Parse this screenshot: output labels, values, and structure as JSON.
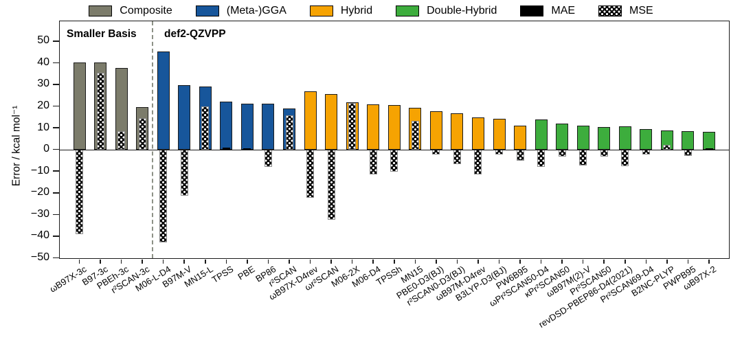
{
  "legend": {
    "items": [
      {
        "label": "Composite",
        "kind": "category",
        "color": "#7c7c6b"
      },
      {
        "label": "(Meta-)GGA",
        "kind": "category",
        "color": "#17569b"
      },
      {
        "label": "Hybrid",
        "kind": "category",
        "color": "#f6a302"
      },
      {
        "label": "Double-Hybrid",
        "kind": "category",
        "color": "#3dad3d"
      },
      {
        "label": "MAE",
        "kind": "metric",
        "color": "#000000"
      },
      {
        "label": "MSE",
        "kind": "metric",
        "color": "hatch"
      }
    ]
  },
  "chart_data": {
    "type": "bar",
    "title": "",
    "xlabel": "",
    "ylabel": "Error / kcal mol⁻¹",
    "ylim": [
      -50,
      59
    ],
    "yticks": [
      50,
      40,
      30,
      20,
      10,
      0,
      -10,
      -20,
      -30,
      -40,
      -50
    ],
    "grid": false,
    "legend_position": "top",
    "annotations": {
      "left_region": "Smaller Basis",
      "right_region": "def2-QZVPP",
      "separator_after_bar_index": 3
    },
    "group_colors": {
      "Composite": "#7c7c6b",
      "(Meta-)GGA": "#17569b",
      "Hybrid": "#f6a302",
      "Double-Hybrid": "#3dad3d"
    },
    "series_names": [
      "MAE",
      "MSE"
    ],
    "bars": [
      {
        "label": "ωB97X-3c",
        "group": "Composite",
        "mae": 40.0,
        "mse": -39.0
      },
      {
        "label": "B97-3c",
        "group": "Composite",
        "mae": 40.0,
        "mse": 35.5
      },
      {
        "label": "PBEh-3c",
        "group": "Composite",
        "mae": 37.5,
        "mse": 8.6
      },
      {
        "label": "r²SCAN-3c",
        "group": "Composite",
        "mae": 19.6,
        "mse": 14.5
      },
      {
        "label": "M06-L-D4",
        "group": "(Meta-)GGA",
        "mae": 45.3,
        "mse": -42.8
      },
      {
        "label": "B97M-V",
        "group": "(Meta-)GGA",
        "mae": 29.8,
        "mse": -21.3
      },
      {
        "label": "MN15-L",
        "group": "(Meta-)GGA",
        "mae": 28.9,
        "mse": 19.8
      },
      {
        "label": "TPSS",
        "group": "(Meta-)GGA",
        "mae": 22.1,
        "mse": 1.0
      },
      {
        "label": "PBE",
        "group": "(Meta-)GGA",
        "mae": 21.1,
        "mse": 0.4
      },
      {
        "label": "BP86",
        "group": "(Meta-)GGA",
        "mae": 21.1,
        "mse": -7.9
      },
      {
        "label": "r²SCAN",
        "group": "(Meta-)GGA",
        "mae": 18.8,
        "mse": 15.7
      },
      {
        "label": "ωB97X-D4rev",
        "group": "Hybrid",
        "mae": 26.7,
        "mse": -22.2
      },
      {
        "label": "ωr²SCAN",
        "group": "Hybrid",
        "mae": 25.6,
        "mse": -32.3
      },
      {
        "label": "M06-2X",
        "group": "Hybrid",
        "mae": 21.9,
        "mse": 21.3
      },
      {
        "label": "M06-D4",
        "group": "Hybrid",
        "mae": 20.7,
        "mse": -11.4
      },
      {
        "label": "TPSSh",
        "group": "Hybrid",
        "mae": 20.5,
        "mse": -10.3
      },
      {
        "label": "MN15",
        "group": "Hybrid",
        "mae": 19.1,
        "mse": 13.2
      },
      {
        "label": "PBE0-D3(BJ)",
        "group": "Hybrid",
        "mae": 17.8,
        "mse": -2.3
      },
      {
        "label": "r²SCAN0-D3(BJ)",
        "group": "Hybrid",
        "mae": 16.8,
        "mse": -6.8
      },
      {
        "label": "ωB97M-D4rev",
        "group": "Hybrid",
        "mae": 14.7,
        "mse": -11.6
      },
      {
        "label": "B3LYP-D3(BJ)",
        "group": "Hybrid",
        "mae": 14.2,
        "mse": -2.3
      },
      {
        "label": "PW6B95",
        "group": "Hybrid",
        "mae": 11.0,
        "mse": -5.3
      },
      {
        "label": "ωPr²SCAN50-D4",
        "group": "Double-Hybrid",
        "mae": 13.8,
        "mse": -8.0
      },
      {
        "label": "κPr²SCAN50",
        "group": "Double-Hybrid",
        "mae": 11.9,
        "mse": -3.4
      },
      {
        "label": "ωB97M(2)-V",
        "group": "Double-Hybrid",
        "mae": 11.1,
        "mse": -7.3
      },
      {
        "label": "Pr²SCAN50",
        "group": "Double-Hybrid",
        "mae": 10.5,
        "mse": -3.4
      },
      {
        "label": "revDSD-PBEP86-D4(2021)",
        "group": "Double-Hybrid",
        "mae": 10.6,
        "mse": -7.8
      },
      {
        "label": "Pr²SCAN69-D4",
        "group": "Double-Hybrid",
        "mae": 9.3,
        "mse": -2.3
      },
      {
        "label": "B2NC-PLYP",
        "group": "Double-Hybrid",
        "mae": 8.8,
        "mse": 2.1
      },
      {
        "label": "PWPB95",
        "group": "Double-Hybrid",
        "mae": 8.6,
        "mse": -3.1
      },
      {
        "label": "ωB97X-2",
        "group": "Double-Hybrid",
        "mae": 8.2,
        "mse": 0.5
      }
    ]
  }
}
